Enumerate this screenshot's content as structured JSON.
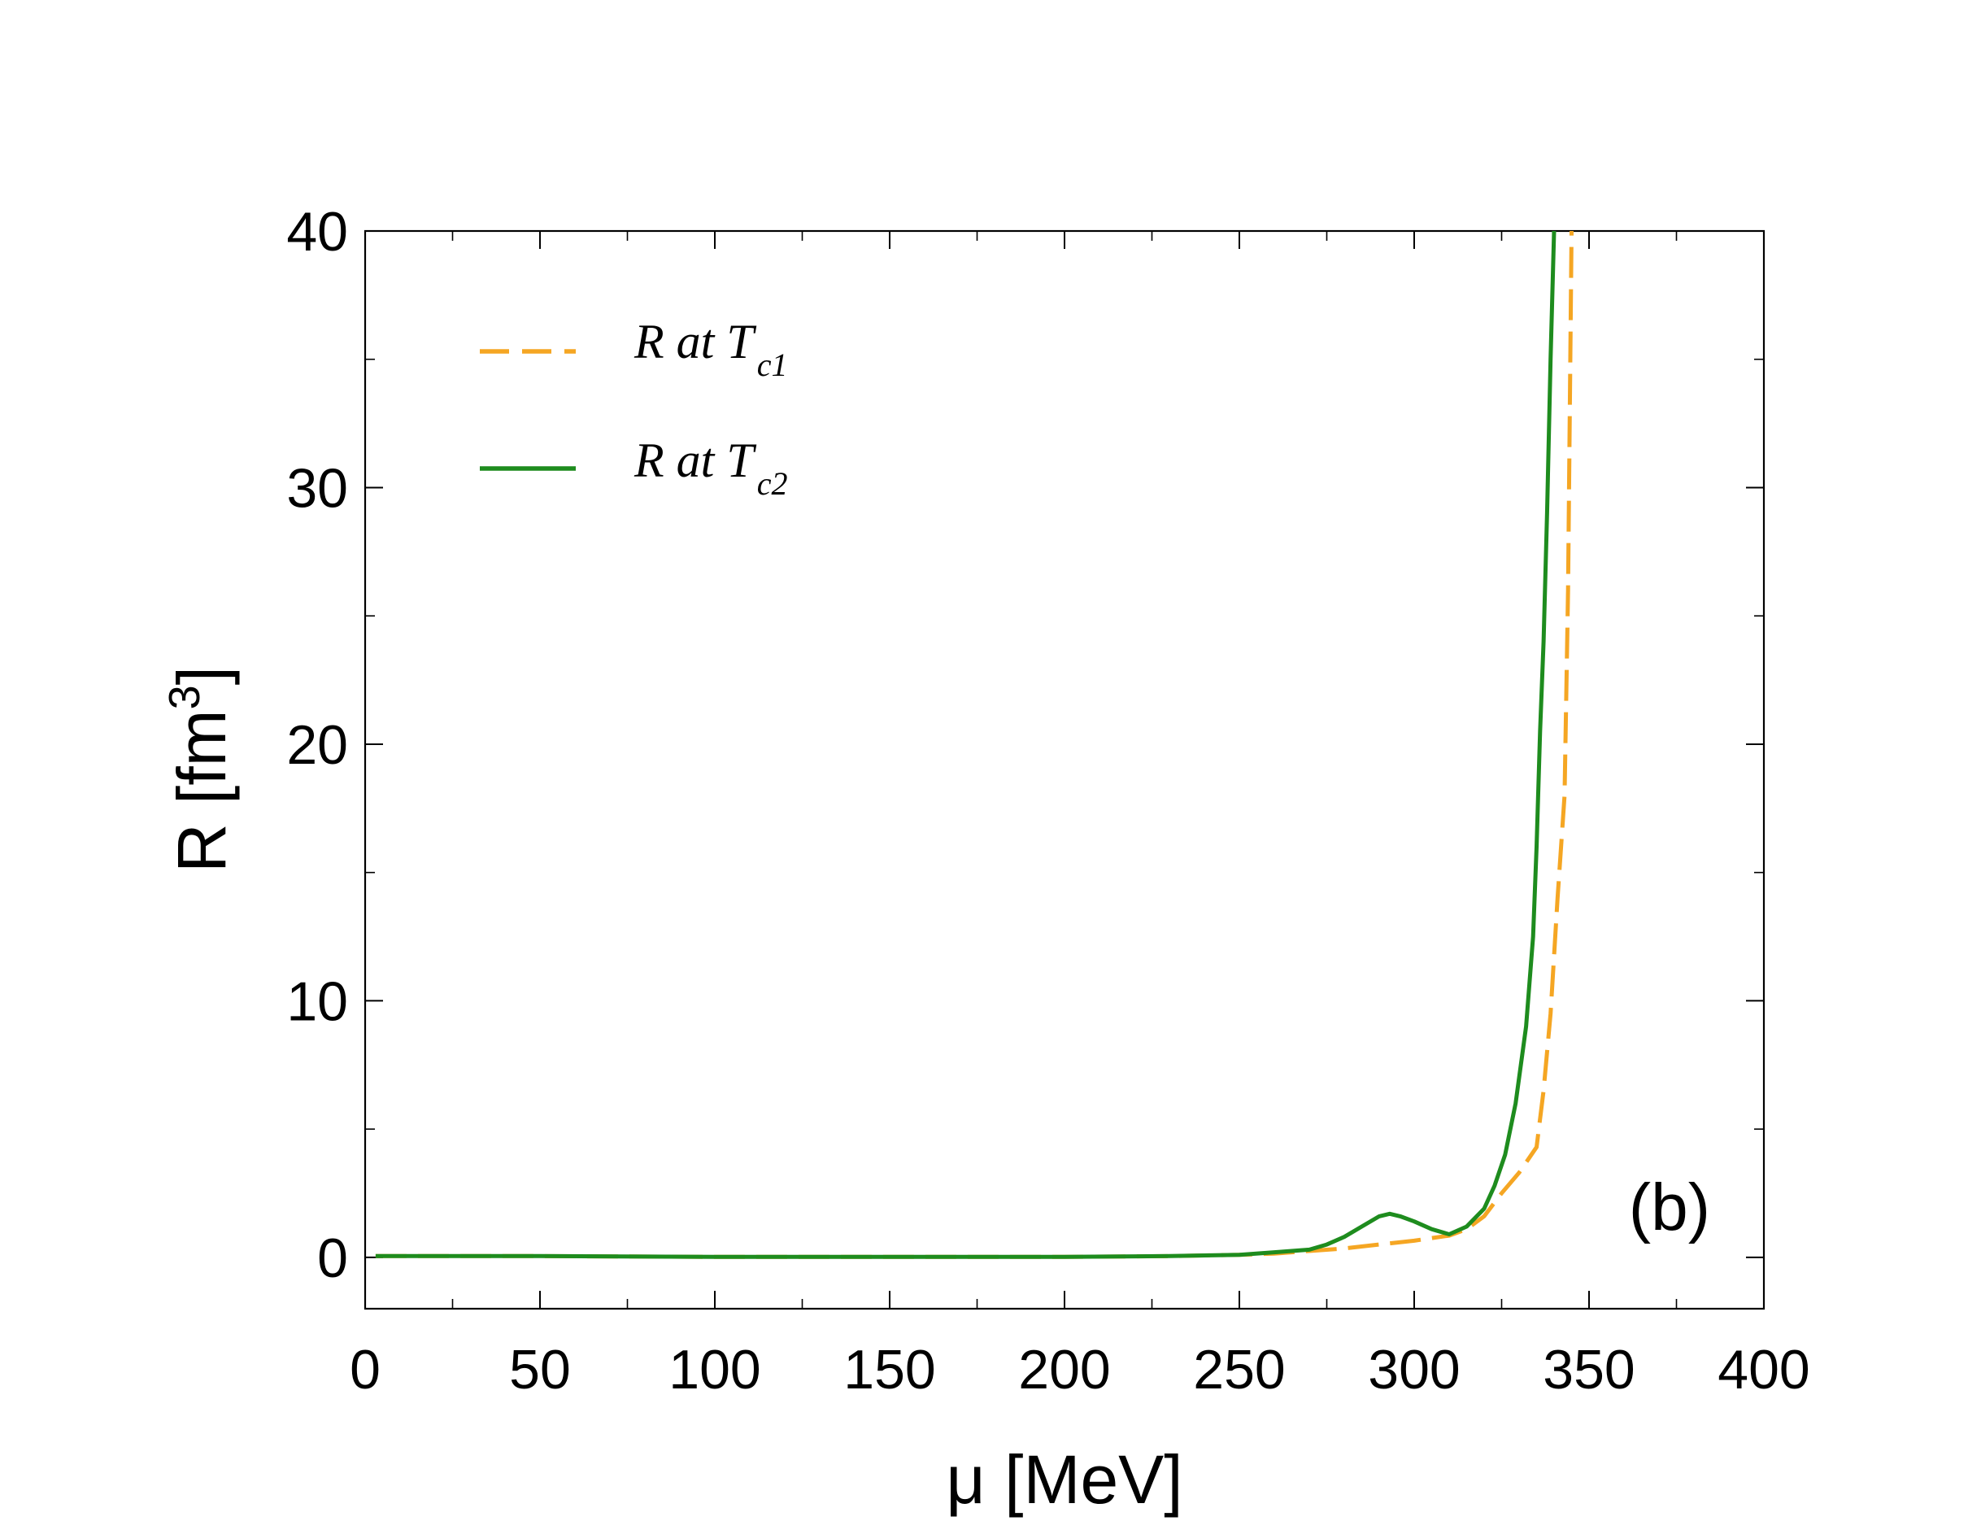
{
  "chart_data": {
    "type": "line",
    "panel_label": "(b)",
    "xlabel": "μ [MeV]",
    "ylabel": "R [fm",
    "ylabel_sup": "3",
    "ylabel_close": "]",
    "xlim": [
      0,
      400
    ],
    "ylim": [
      -2,
      40
    ],
    "xticks": [
      0,
      50,
      100,
      150,
      200,
      250,
      300,
      350,
      400
    ],
    "xminor": [
      25,
      75,
      125,
      175,
      225,
      275,
      325,
      375
    ],
    "yticks": [
      0,
      10,
      20,
      30,
      40
    ],
    "yminor": [
      5,
      15,
      25,
      35
    ],
    "legend_position": "top-left",
    "series": [
      {
        "name": "R at T_c1",
        "label_main": "R at T",
        "label_sub": "c1",
        "color": "#f5a623",
        "style": "dashed",
        "x": [
          3,
          50,
          100,
          150,
          200,
          230,
          250,
          260,
          270,
          280,
          290,
          300,
          305,
          310,
          315,
          320,
          325,
          330,
          335,
          337,
          339,
          341,
          343,
          344,
          345
        ],
        "y": [
          0.05,
          0.05,
          0.02,
          0.02,
          0.02,
          0.05,
          0.1,
          0.15,
          0.25,
          0.35,
          0.5,
          0.65,
          0.75,
          0.85,
          1.1,
          1.6,
          2.5,
          3.3,
          4.3,
          6.5,
          9.5,
          14,
          18,
          26,
          40
        ]
      },
      {
        "name": "R at T_c2",
        "label_main": "R at T",
        "label_sub": "c2",
        "color": "#1e8c1e",
        "style": "solid",
        "x": [
          3,
          50,
          100,
          150,
          200,
          230,
          250,
          260,
          270,
          275,
          280,
          285,
          290,
          293,
          296,
          300,
          305,
          310,
          315,
          320,
          323,
          326,
          329,
          332,
          334,
          335,
          336,
          337,
          338,
          339,
          340
        ],
        "y": [
          0.05,
          0.05,
          0.02,
          0.02,
          0.02,
          0.05,
          0.1,
          0.2,
          0.3,
          0.5,
          0.8,
          1.2,
          1.6,
          1.7,
          1.6,
          1.4,
          1.1,
          0.9,
          1.2,
          1.9,
          2.8,
          4.0,
          6.0,
          9.0,
          12.5,
          16,
          20.5,
          24,
          29,
          35,
          40
        ]
      }
    ]
  }
}
